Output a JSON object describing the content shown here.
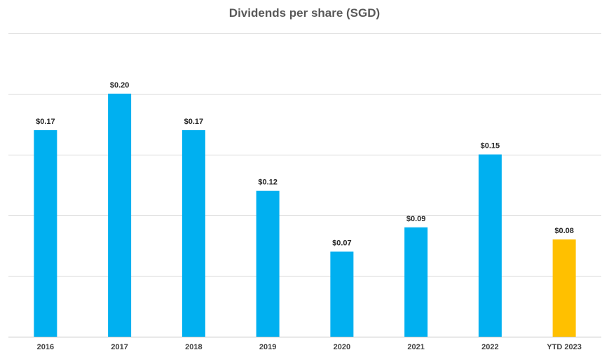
{
  "chart_data": {
    "type": "bar",
    "title": "Dividends per share (SGD)",
    "xlabel": "",
    "ylabel": "",
    "categories": [
      "2016",
      "2017",
      "2018",
      "2019",
      "2020",
      "2021",
      "2022",
      "YTD 2023"
    ],
    "values": [
      0.17,
      0.2,
      0.17,
      0.12,
      0.07,
      0.09,
      0.15,
      0.08
    ],
    "data_labels": [
      "$0.17",
      "$0.20",
      "$0.17",
      "$0.12",
      "$0.07",
      "$0.09",
      "$0.15",
      "$0.08"
    ],
    "ylim": [
      0,
      0.25
    ],
    "ytick_step": 0.05,
    "grid": true,
    "legend": "none",
    "colors": {
      "default": "#00B0F0",
      "highlight": "#FFC000",
      "gridline": "#D9D9D9",
      "axis": "#BFBFBF"
    },
    "highlight_categories": [
      "YTD 2023"
    ]
  }
}
